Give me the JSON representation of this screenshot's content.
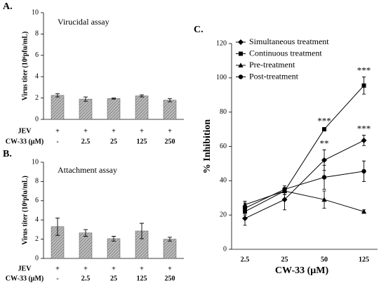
{
  "chart_data": [
    {
      "type": "bar",
      "panel_label": "A.",
      "title": "Virucidal assay",
      "y_label": "Virus titer (10⁶pfu/mL)",
      "ylim": [
        0,
        10
      ],
      "yticks": [
        0,
        2,
        4,
        6,
        8,
        10
      ],
      "values": [
        2.25,
        1.9,
        1.95,
        2.2,
        1.8
      ],
      "errors": [
        0.15,
        0.2,
        0.05,
        0.1,
        0.15
      ],
      "conditions": [
        {
          "label": "JEV",
          "values": [
            "+",
            "+",
            "+",
            "+",
            "+"
          ]
        },
        {
          "label": "CW-33 (μM)",
          "values": [
            "-",
            "2.5",
            "25",
            "125",
            "250"
          ]
        }
      ]
    },
    {
      "type": "bar",
      "panel_label": "B.",
      "title": "Attachment assay",
      "y_label": "Virus titer (10⁶pfu/mL)",
      "ylim": [
        0,
        10
      ],
      "yticks": [
        0,
        2,
        4,
        6,
        8,
        10
      ],
      "values": [
        3.3,
        2.65,
        2.05,
        2.85,
        2.0
      ],
      "errors": [
        0.9,
        0.35,
        0.25,
        0.8,
        0.2
      ],
      "conditions": [
        {
          "label": "JEV",
          "values": [
            "+",
            "+",
            "+",
            "+",
            "+"
          ]
        },
        {
          "label": "CW-33 (μM)",
          "values": [
            "-",
            "2.5",
            "25",
            "125",
            "250"
          ]
        }
      ]
    },
    {
      "type": "line",
      "panel_label": "C.",
      "x_label": "CW-33 (μM)",
      "y_label": "% Inhibition",
      "categories": [
        "2.5",
        "25",
        "50",
        "125"
      ],
      "ylim": [
        0,
        120
      ],
      "yticks": [
        0,
        20,
        40,
        60,
        80,
        100,
        120
      ],
      "series": [
        {
          "name": "Simultaneous treatment",
          "marker": "diamond",
          "color": "#000000",
          "values": [
            18,
            29,
            52,
            63.5
          ],
          "errors": [
            4,
            6,
            6,
            3
          ],
          "annotations": [
            null,
            null,
            "**",
            "***"
          ]
        },
        {
          "name": "Continuous treatment",
          "marker": "square",
          "color": "#000000",
          "values": [
            22,
            34,
            70,
            95.5
          ],
          "errors": [
            2,
            2,
            1,
            5
          ],
          "annotations": [
            null,
            null,
            "***",
            "***"
          ]
        },
        {
          "name": "Pre-treatment",
          "marker": "triangle",
          "color": "#000000",
          "values": [
            26,
            34,
            29,
            22
          ],
          "errors": [
            2,
            2,
            5,
            1
          ],
          "annotations": [
            null,
            null,
            null,
            null
          ]
        },
        {
          "name": "Post-treatment",
          "marker": "circle",
          "color": "#000000",
          "values": [
            24,
            35,
            42,
            45.5
          ],
          "errors": [
            3,
            2,
            7,
            6
          ],
          "annotations": [
            null,
            null,
            null,
            null
          ]
        }
      ]
    }
  ]
}
